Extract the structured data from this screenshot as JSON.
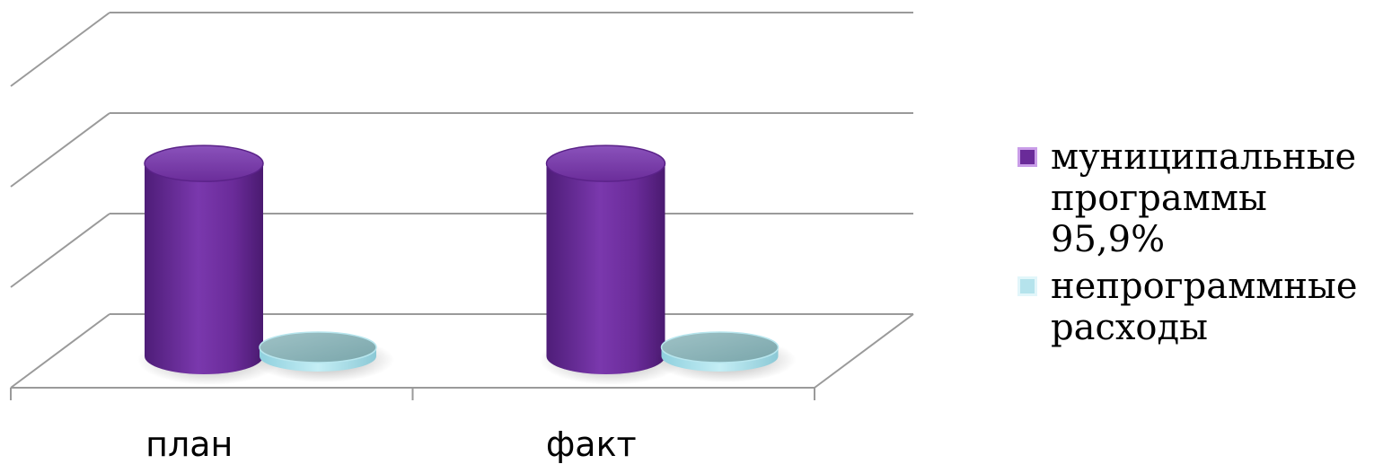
{
  "chart_data": {
    "type": "bar",
    "style": "3d-cylinder",
    "categories": [
      "план",
      "факт"
    ],
    "series": [
      {
        "name": "муниципальные программы 95,9%",
        "color": "#7030a0",
        "values": [
          95.9,
          95.9
        ]
      },
      {
        "name": "непрограммные расходы",
        "color": "#93cddd",
        "values": [
          4.1,
          4.1
        ]
      }
    ],
    "ylim": [
      0,
      120
    ],
    "gridlines": true,
    "y_tick_labels": false,
    "legend_position": "right"
  }
}
